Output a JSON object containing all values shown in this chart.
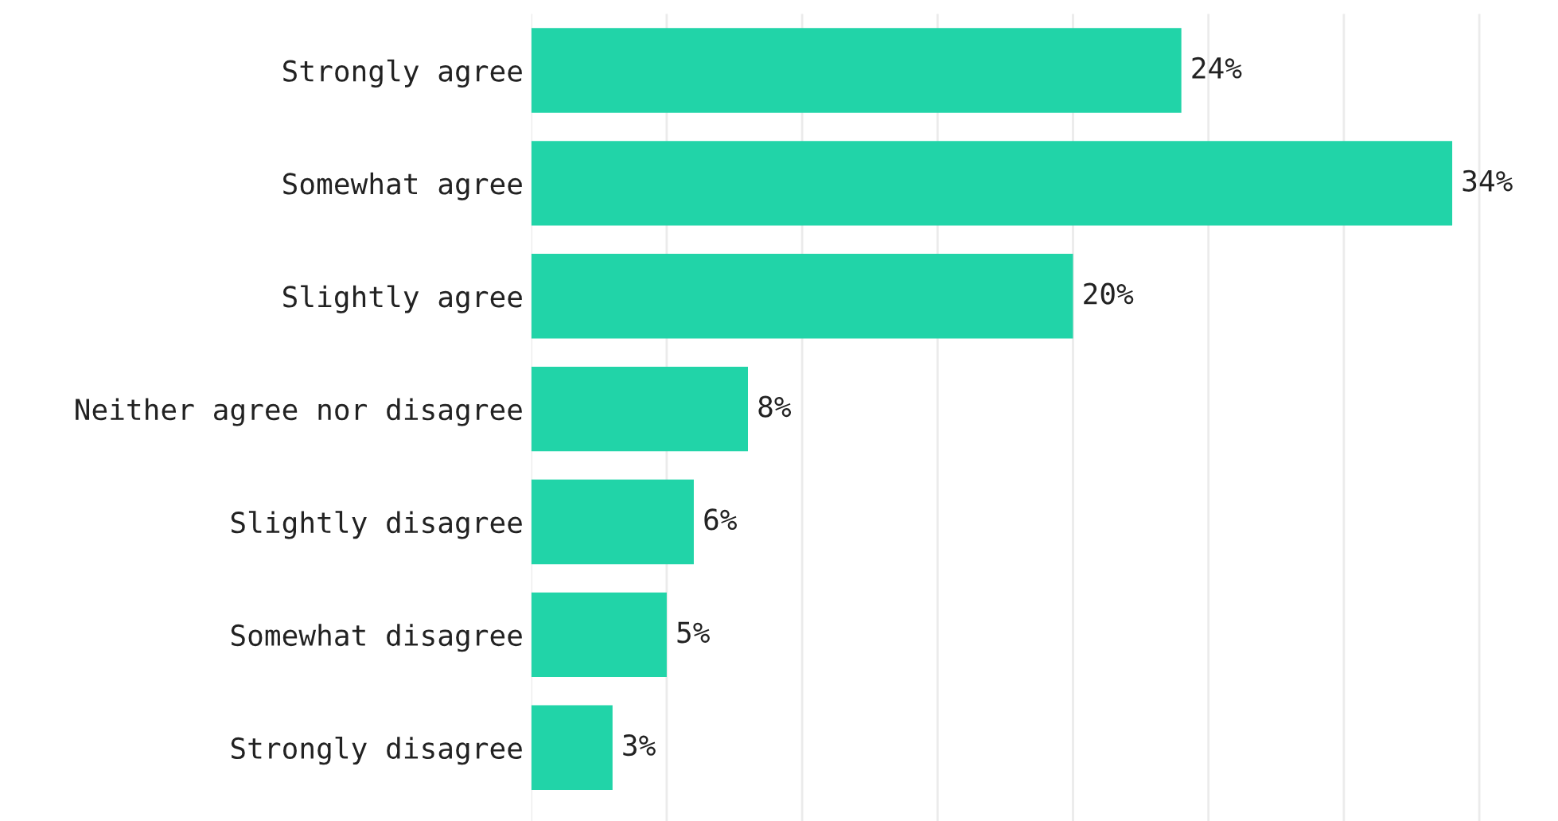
{
  "chart_data": {
    "type": "bar",
    "orientation": "horizontal",
    "categories": [
      "Strongly agree",
      "Somewhat agree",
      "Slightly agree",
      "Neither agree nor disagree",
      "Slightly disagree",
      "Somewhat disagree",
      "Strongly disagree"
    ],
    "values": [
      24,
      34,
      20,
      8,
      6,
      5,
      3
    ],
    "value_labels": [
      "24%",
      "34%",
      "20%",
      "8%",
      "6%",
      "5%",
      "3%"
    ],
    "color": "#21d4a8",
    "xticks": [
      {
        "value": 0,
        "label": null
      },
      {
        "value": 5,
        "label": null
      },
      {
        "value": 10,
        "label": null
      },
      {
        "value": 15,
        "label": null
      },
      {
        "value": 20,
        "label": null
      },
      {
        "value": 25,
        "label": null
      },
      {
        "value": 30,
        "label": null
      },
      {
        "value": 35,
        "label": null
      }
    ],
    "grid": "x",
    "tick_labels": "y"
  }
}
